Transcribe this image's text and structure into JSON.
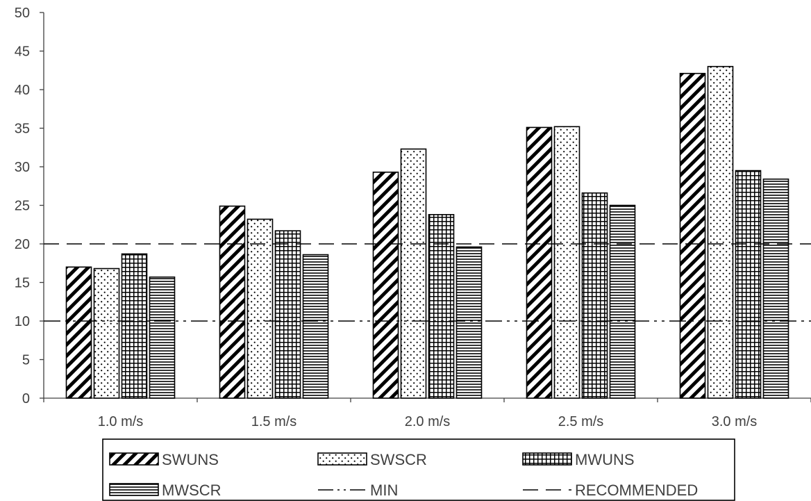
{
  "chart_data": {
    "type": "bar",
    "title": "",
    "xlabel": "",
    "ylabel": "",
    "categories": [
      "1.0 m/s",
      "1.5 m/s",
      "2.0 m/s",
      "2.5 m/s",
      "3.0 m/s"
    ],
    "ylim": [
      0,
      50
    ],
    "yticks": [
      0,
      5,
      10,
      15,
      20,
      25,
      30,
      35,
      40,
      45,
      50
    ],
    "grid": false,
    "legend_position": "bottom",
    "series": [
      {
        "name": "SWUNS",
        "pattern": "diagonal-stripes",
        "values": [
          17.0,
          24.9,
          29.3,
          35.1,
          42.1
        ]
      },
      {
        "name": "SWSCR",
        "pattern": "dots",
        "values": [
          16.8,
          23.2,
          32.3,
          35.2,
          43.0
        ]
      },
      {
        "name": "MWUNS",
        "pattern": "grid",
        "values": [
          18.7,
          21.7,
          23.8,
          26.6,
          29.5
        ]
      },
      {
        "name": "MWSCR",
        "pattern": "horizontal-lines",
        "values": [
          15.7,
          18.6,
          19.6,
          25.0,
          28.4
        ]
      }
    ],
    "reference_lines": [
      {
        "name": "MIN",
        "value": 10,
        "style": "dash-dot-dot"
      },
      {
        "name": "RECOMMENDED",
        "value": 20,
        "style": "dashed"
      }
    ],
    "colors": {
      "ink": "#000000",
      "text": "#404040",
      "background": "#ffffff"
    }
  }
}
